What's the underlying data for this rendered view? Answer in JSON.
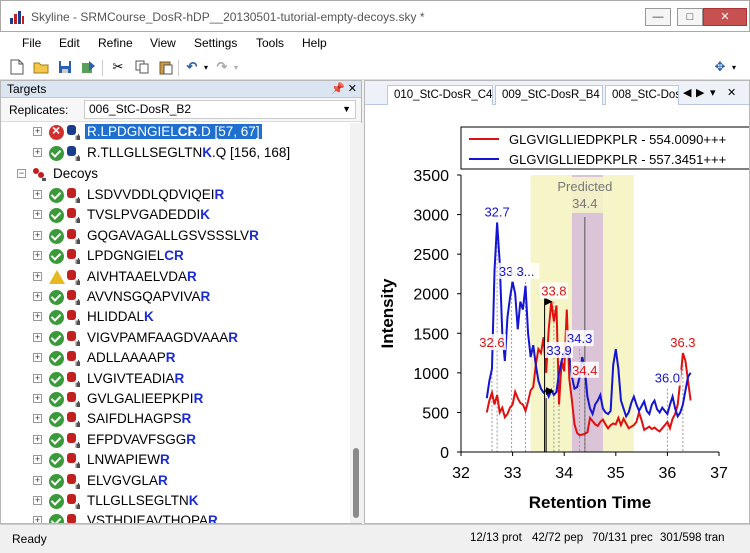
{
  "window": {
    "title": "Skyline - SRMCourse_DosR-hDP__20130501-tutorial-empty-decoys.sky *",
    "minimize": "—",
    "maximize": "□",
    "close": "✕"
  },
  "menu": [
    "File",
    "Edit",
    "Refine",
    "View",
    "Settings",
    "Tools",
    "Help"
  ],
  "toolbar_icons": [
    "new-document-icon",
    "open-folder-icon",
    "save-icon",
    "import-icon",
    "cut-icon",
    "copy-icon",
    "paste-icon",
    "undo-icon",
    "redo-icon",
    "settings-icon"
  ],
  "targets_panel": {
    "title": "Targets",
    "replicates_label": "Replicates:",
    "replicate_value": "006_StC-DosR_B2"
  },
  "tree": {
    "top_rows": [
      {
        "status": "error",
        "prefix": "R.LPDGNGIEL",
        "mod": "CR",
        "suffix": ".D [57, 67]",
        "selected": true
      },
      {
        "status": "ok",
        "prefix": "R.TLLGLLSEGLTN",
        "mod": "K",
        "suffix": ".Q [156, 168]",
        "selected": false
      }
    ],
    "decoys_label": "Decoys",
    "decoys": [
      {
        "status": "ok",
        "seq": "LSDVVDDLQDVIQEI",
        "last": "R"
      },
      {
        "status": "ok",
        "seq": "TVSLPVGADEDDI",
        "last": "K"
      },
      {
        "status": "ok",
        "seq": "GQGAVAGALLGSVSSSLV",
        "last": "R"
      },
      {
        "status": "ok",
        "seq": "LPDGNGIEL",
        "last": "CR"
      },
      {
        "status": "warn",
        "seq": "AIVHTAAELVDA",
        "last": "R"
      },
      {
        "status": "ok",
        "seq": "AVVNSGQAPVIVA",
        "last": "R"
      },
      {
        "status": "ok",
        "seq": "HLIDDAL",
        "last": "K"
      },
      {
        "status": "ok",
        "seq": "VIGVPAMFAAGDVAAA",
        "last": "R"
      },
      {
        "status": "ok",
        "seq": "ADLLAAAAP",
        "last": "R"
      },
      {
        "status": "ok",
        "seq": "LVGIVTEADIA",
        "last": "R"
      },
      {
        "status": "ok",
        "seq": "GVLGALIEEPKPI",
        "last": "R"
      },
      {
        "status": "ok",
        "seq": "SAIFDLHAGPS",
        "last": "R"
      },
      {
        "status": "ok",
        "seq": "EFPDVAVFSGG",
        "last": "R"
      },
      {
        "status": "ok",
        "seq": "LNWAPIEW",
        "last": "R"
      },
      {
        "status": "ok",
        "seq": "ELVGVGLA",
        "last": "R"
      },
      {
        "status": "ok",
        "seq": "TLLGLLSEGLTN",
        "last": "K"
      },
      {
        "status": "ok",
        "seq": "VSTHDIEAVTHQPA",
        "last": "R"
      }
    ]
  },
  "tabs": [
    "010_StC-DosR_C4",
    "009_StC-DosR_B4",
    "008_StC-Dos"
  ],
  "tab_nav": [
    "◀",
    "▶",
    "▾",
    "✕"
  ],
  "chart_data": {
    "type": "line",
    "xlabel": "Retention Time",
    "ylabel": "Intensity",
    "xlim": [
      32,
      37
    ],
    "ylim": [
      0,
      3500
    ],
    "x_ticks": [
      "32",
      "33",
      "34",
      "35",
      "36",
      "37"
    ],
    "y_ticks": [
      "0",
      "500",
      "1000",
      "1500",
      "2000",
      "2500",
      "3000",
      "3500"
    ],
    "legend_position": "top-right",
    "predicted_label": "Predicted",
    "predicted_value": "34.4",
    "predicted_rt": 34.4,
    "prediction_window": [
      33.35,
      35.35
    ],
    "integration_window": [
      34.15,
      34.75
    ],
    "series": [
      {
        "name": "GLGVIGLLIEDPKPLR - 554.0090+++",
        "color": "#e01010",
        "x": [
          32.5,
          32.55,
          32.6,
          32.65,
          32.7,
          32.75,
          32.8,
          32.85,
          32.9,
          32.95,
          33.0,
          33.05,
          33.1,
          33.15,
          33.2,
          33.25,
          33.3,
          33.35,
          33.4,
          33.45,
          33.5,
          33.55,
          33.6,
          33.65,
          33.7,
          33.75,
          33.8,
          33.85,
          33.9,
          33.95,
          34.0,
          34.05,
          34.1,
          34.15,
          34.2,
          34.25,
          34.3,
          34.35,
          34.4,
          34.45,
          34.5,
          34.55,
          34.6,
          34.65,
          34.7,
          34.75,
          34.8,
          34.85,
          34.9,
          34.95,
          35.0,
          35.05,
          35.1,
          35.15,
          35.2,
          35.25,
          35.3,
          35.35,
          35.4,
          35.45,
          35.5,
          35.55,
          35.6,
          35.65,
          35.7,
          35.75,
          35.8,
          35.85,
          35.9,
          35.95,
          36.0,
          36.05,
          36.1,
          36.15,
          36.2,
          36.25,
          36.3,
          36.35,
          36.4,
          36.45
        ],
        "y": [
          500,
          650,
          750,
          600,
          720,
          500,
          560,
          440,
          480,
          560,
          600,
          760,
          680,
          620,
          600,
          520,
          640,
          780,
          820,
          1100,
          1300,
          1250,
          1450,
          1000,
          1550,
          1900,
          1650,
          1850,
          600,
          1150,
          1020,
          1800,
          920,
          650,
          350,
          240,
          210,
          220,
          230,
          250,
          430,
          390,
          350,
          330,
          380,
          410,
          350,
          300,
          340,
          360,
          350,
          430,
          340,
          420,
          360,
          300,
          320,
          340,
          380,
          500,
          400,
          280,
          300,
          320,
          290,
          310,
          280,
          260,
          300,
          340,
          380,
          300,
          420,
          480,
          600,
          900,
          1250,
          1150,
          900,
          650
        ]
      },
      {
        "name": "GLGVIGLLIEDPKPLR - 557.3451+++",
        "color": "#1414d2",
        "x": [
          32.5,
          32.55,
          32.6,
          32.65,
          32.7,
          32.75,
          32.8,
          32.85,
          32.9,
          32.95,
          33.0,
          33.05,
          33.1,
          33.15,
          33.2,
          33.25,
          33.3,
          33.35,
          33.4,
          33.45,
          33.5,
          33.55,
          33.6,
          33.65,
          33.7,
          33.75,
          33.8,
          33.85,
          33.9,
          33.95,
          34.0,
          34.05,
          34.1,
          34.15,
          34.2,
          34.25,
          34.3,
          34.35,
          34.4,
          34.45,
          34.5,
          34.55,
          34.6,
          34.65,
          34.7,
          34.75,
          34.8,
          34.85,
          34.9,
          34.95,
          35.0,
          35.05,
          35.1,
          35.15,
          35.2,
          35.25,
          35.3,
          35.35,
          35.4,
          35.45,
          35.5,
          35.55,
          35.6,
          35.65,
          35.7,
          35.75,
          35.8,
          35.85,
          35.9,
          35.95,
          36.0,
          36.05,
          36.1,
          36.15,
          36.2,
          36.25,
          36.3,
          36.35,
          36.4,
          36.45
        ],
        "y": [
          680,
          900,
          1050,
          2300,
          2900,
          2400,
          1500,
          1150,
          1700,
          1950,
          2150,
          2000,
          1550,
          1900,
          1800,
          2100,
          1500,
          1200,
          1350,
          1100,
          900,
          800,
          750,
          780,
          700,
          780,
          720,
          760,
          1000,
          1150,
          1250,
          1300,
          1200,
          950,
          800,
          820,
          950,
          1200,
          1050,
          700,
          550,
          480,
          600,
          650,
          720,
          550,
          500,
          480,
          520,
          1100,
          1300,
          1050,
          650,
          550,
          450,
          500,
          620,
          700,
          600,
          520,
          580,
          640,
          520,
          480,
          600,
          650,
          540,
          500,
          560,
          520,
          480,
          600,
          700,
          550,
          450,
          500,
          600,
          780,
          950,
          1000
        ]
      }
    ],
    "peak_labels": [
      {
        "text": "32.7",
        "x": 32.7,
        "y": 2900,
        "series": 1
      },
      {
        "text": "33.0",
        "x": 32.98,
        "y": 2150,
        "series": 1
      },
      {
        "text": "3...",
        "x": 33.25,
        "y": 2150,
        "series": 1
      },
      {
        "text": "33.8",
        "x": 33.8,
        "y": 1900,
        "series": 0
      },
      {
        "text": "34.3",
        "x": 34.3,
        "y": 1300,
        "series": 1
      },
      {
        "text": "33.9",
        "x": 33.9,
        "y": 1150,
        "series": 1
      },
      {
        "text": "34.4",
        "x": 34.4,
        "y": 900,
        "series": 0
      },
      {
        "text": "32.6",
        "x": 32.6,
        "y": 1250,
        "series": 0
      },
      {
        "text": "36.0",
        "x": 36.0,
        "y": 800,
        "series": 1
      },
      {
        "text": "36.3",
        "x": 36.3,
        "y": 1250,
        "series": 0
      }
    ]
  },
  "status": {
    "ready": "Ready",
    "prot": "12/13 prot",
    "pep": "42/72 pep",
    "prec": "70/131 prec",
    "tran": "301/598 tran"
  }
}
